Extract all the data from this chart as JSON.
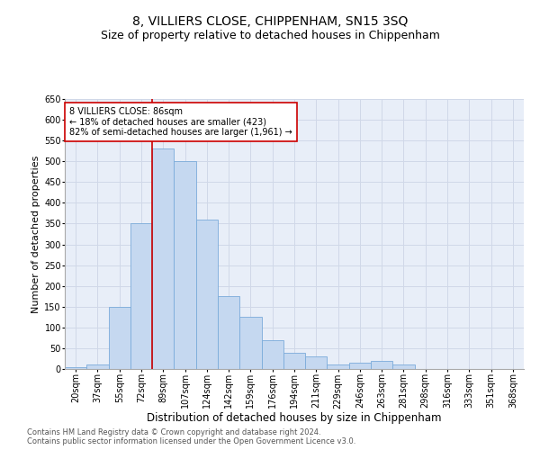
{
  "title": "8, VILLIERS CLOSE, CHIPPENHAM, SN15 3SQ",
  "subtitle": "Size of property relative to detached houses in Chippenham",
  "xlabel": "Distribution of detached houses by size in Chippenham",
  "ylabel": "Number of detached properties",
  "categories": [
    "20sqm",
    "37sqm",
    "55sqm",
    "72sqm",
    "89sqm",
    "107sqm",
    "124sqm",
    "142sqm",
    "159sqm",
    "176sqm",
    "194sqm",
    "211sqm",
    "229sqm",
    "246sqm",
    "263sqm",
    "281sqm",
    "298sqm",
    "316sqm",
    "333sqm",
    "351sqm",
    "368sqm"
  ],
  "values": [
    5,
    10,
    150,
    350,
    530,
    500,
    360,
    175,
    125,
    70,
    40,
    30,
    10,
    15,
    20,
    10,
    0,
    0,
    0,
    0,
    0
  ],
  "bar_color": "#c5d8f0",
  "bar_edgecolor": "#7aabda",
  "vline_x": 4,
  "vline_color": "#cc0000",
  "annotation_text": "8 VILLIERS CLOSE: 86sqm\n← 18% of detached houses are smaller (423)\n82% of semi-detached houses are larger (1,961) →",
  "annotation_box_facecolor": "#ffffff",
  "annotation_box_edgecolor": "#cc0000",
  "grid_color": "#d0d8e8",
  "bg_color": "#e8eef8",
  "ylim": [
    0,
    650
  ],
  "footer1": "Contains HM Land Registry data © Crown copyright and database right 2024.",
  "footer2": "Contains public sector information licensed under the Open Government Licence v3.0.",
  "title_fontsize": 10,
  "subtitle_fontsize": 9,
  "xlabel_fontsize": 8.5,
  "ylabel_fontsize": 8,
  "tick_fontsize": 7,
  "annotation_fontsize": 7,
  "footer_fontsize": 6
}
